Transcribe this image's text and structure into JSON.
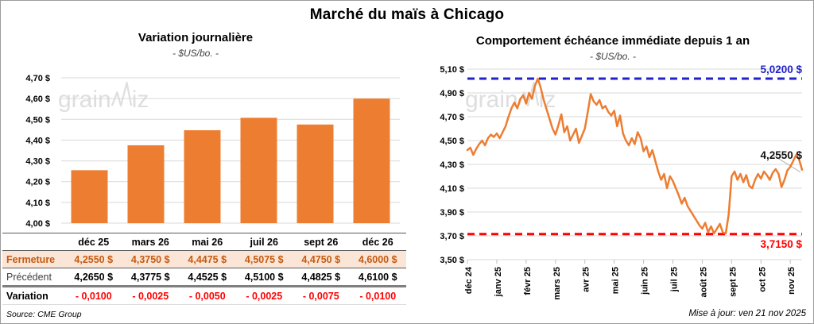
{
  "page": {
    "title": "Marché du maïs à Chicago",
    "source": "Source: CME Group",
    "updated": "Mise à jour: ven 21 nov 2025",
    "watermark": {
      "part1": "grain",
      "part2": "iz"
    }
  },
  "colors": {
    "orange": "#ED7D31",
    "close_bg": "#FBE5D6",
    "close_text": "#C55A11",
    "negative": "#FF0000",
    "high_line": "#2222CC",
    "low_line": "#FF0000",
    "grid": "#D9D9D9",
    "axis_tick": "#BFBFBF",
    "leader": "#ABABAB",
    "watermark": "#DEDEDE"
  },
  "chart_data": [
    {
      "id": "daily-variation",
      "type": "bar",
      "title": "Variation journalière",
      "subtitle": "- $US/bo. -",
      "categories": [
        "déc 25",
        "mars 26",
        "mai 26",
        "juil 26",
        "sept 26",
        "déc 26"
      ],
      "values": [
        4.255,
        4.375,
        4.4475,
        4.5075,
        4.475,
        4.6
      ],
      "ylim": [
        4.0,
        4.7
      ],
      "ytick_step": 0.1,
      "ytick_labels": [
        "4,00 $",
        "4,10 $",
        "4,20 $",
        "4,30 $",
        "4,40 $",
        "4,50 $",
        "4,60 $",
        "4,70 $"
      ],
      "grid": true,
      "bar_color": "#ED7D31"
    },
    {
      "id": "front-month-behaviour",
      "type": "line",
      "title": "Comportement échéance immédiate depuis 1 an",
      "subtitle": "- $US/bo. -",
      "x_tick_labels": [
        "déc 24",
        "janv 25",
        "févr 25",
        "mars 25",
        "avr 25",
        "mai 25",
        "juin 25",
        "juil 25",
        "août 25",
        "sept 25",
        "oct 25",
        "nov 25"
      ],
      "tick_every": 10,
      "values": [
        4.42,
        4.44,
        4.38,
        4.43,
        4.47,
        4.5,
        4.46,
        4.52,
        4.55,
        4.53,
        4.56,
        4.52,
        4.57,
        4.62,
        4.7,
        4.77,
        4.82,
        4.77,
        4.85,
        4.88,
        4.81,
        4.9,
        4.85,
        4.96,
        5.02,
        4.94,
        4.84,
        4.76,
        4.68,
        4.6,
        4.55,
        4.63,
        4.72,
        4.57,
        4.62,
        4.5,
        4.55,
        4.6,
        4.48,
        4.54,
        4.6,
        4.74,
        4.89,
        4.83,
        4.8,
        4.84,
        4.77,
        4.79,
        4.74,
        4.71,
        4.75,
        4.62,
        4.71,
        4.56,
        4.5,
        4.46,
        4.52,
        4.47,
        4.57,
        4.52,
        4.41,
        4.45,
        4.36,
        4.42,
        4.33,
        4.24,
        4.17,
        4.22,
        4.1,
        4.2,
        4.16,
        4.1,
        4.04,
        3.97,
        4.02,
        3.95,
        3.91,
        3.87,
        3.83,
        3.79,
        3.76,
        3.81,
        3.73,
        3.78,
        3.72,
        3.76,
        3.8,
        3.73,
        3.72,
        3.88,
        4.2,
        4.24,
        4.17,
        4.22,
        4.15,
        4.21,
        4.12,
        4.1,
        4.17,
        4.22,
        4.18,
        4.24,
        4.21,
        4.17,
        4.23,
        4.26,
        4.22,
        4.11,
        4.17,
        4.25,
        4.28,
        4.33,
        4.38,
        4.34,
        4.255
      ],
      "ylim": [
        3.5,
        5.1
      ],
      "ytick_step": 0.2,
      "ytick_labels": [
        "3,50 $",
        "3,70 $",
        "3,90 $",
        "4,10 $",
        "4,30 $",
        "4,50 $",
        "4,70 $",
        "4,90 $",
        "5,10 $"
      ],
      "grid": true,
      "line_color": "#ED7D31",
      "high_line": {
        "value": 5.02,
        "label": "5,0200 $"
      },
      "low_line": {
        "value": 3.715,
        "label": "3,7150 $"
      },
      "last_point_label": "4,2550 $",
      "legend_position": "none"
    }
  ],
  "table": {
    "col_headers": [
      "déc 25",
      "mars 26",
      "mai 26",
      "juil 26",
      "sept 26",
      "déc 26"
    ],
    "rows": [
      {
        "label": "Fermeture",
        "style": "close",
        "values": [
          "4,2550 $",
          "4,3750 $",
          "4,4475 $",
          "4,5075 $",
          "4,4750 $",
          "4,6000 $"
        ]
      },
      {
        "label": "Précédent",
        "style": "previous",
        "values": [
          "4,2650 $",
          "4,3775 $",
          "4,4525 $",
          "4,5100 $",
          "4,4825 $",
          "4,6100 $"
        ]
      },
      {
        "label": "Variation",
        "style": "variation",
        "values": [
          "- 0,0100",
          "- 0,0025",
          "- 0,0050",
          "- 0,0025",
          "- 0,0075",
          "- 0,0100"
        ]
      }
    ]
  }
}
